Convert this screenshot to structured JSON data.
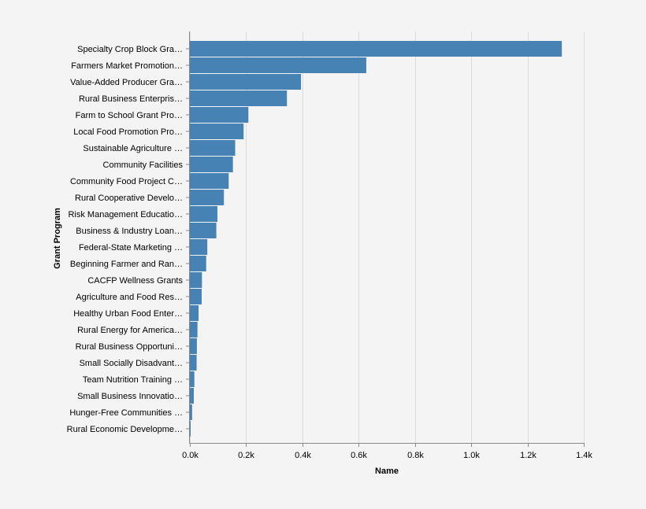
{
  "chart_data": {
    "type": "bar",
    "orientation": "horizontal",
    "xlabel": "Name",
    "ylabel": "Grant Program",
    "xlim": [
      0,
      1400
    ],
    "x_ticks": [
      "0.0k",
      "0.2k",
      "0.4k",
      "0.6k",
      "0.8k",
      "1.0k",
      "1.2k",
      "1.4k"
    ],
    "x_tick_values": [
      0,
      200,
      400,
      600,
      800,
      1000,
      1200,
      1400
    ],
    "grid": "vertical",
    "bar_color": "#4682b4",
    "categories": [
      "Specialty Crop Block Gra…",
      "Farmers Market Promotion…",
      "Value-Added Producer Gra…",
      "Rural Business Enterpris…",
      "Farm to School Grant Pro…",
      "Local Food Promotion Pro…",
      "Sustainable Agriculture …",
      "Community Facilities",
      "Community Food Project C…",
      "Rural Cooperative Develo…",
      "Risk Management Educatio…",
      "Business & Industry Loan…",
      "Federal-State Marketing …",
      "Beginning Farmer and Ran…",
      "CACFP Wellness Grants",
      "Agriculture and Food Res…",
      "Healthy Urban Food Enter…",
      "Rural Energy for America…",
      "Rural Business Opportuni…",
      "Small Socially Disadvant…",
      "Team Nutrition Training …",
      "Small Business Innovatio…",
      "Hunger-Free Communities …",
      "Rural Economic Developme…"
    ],
    "values": [
      1322,
      627,
      395,
      345,
      208,
      191,
      161,
      153,
      138,
      121,
      98,
      94,
      62,
      58,
      43,
      42,
      31,
      27,
      25,
      24,
      16,
      14,
      8,
      2
    ]
  }
}
